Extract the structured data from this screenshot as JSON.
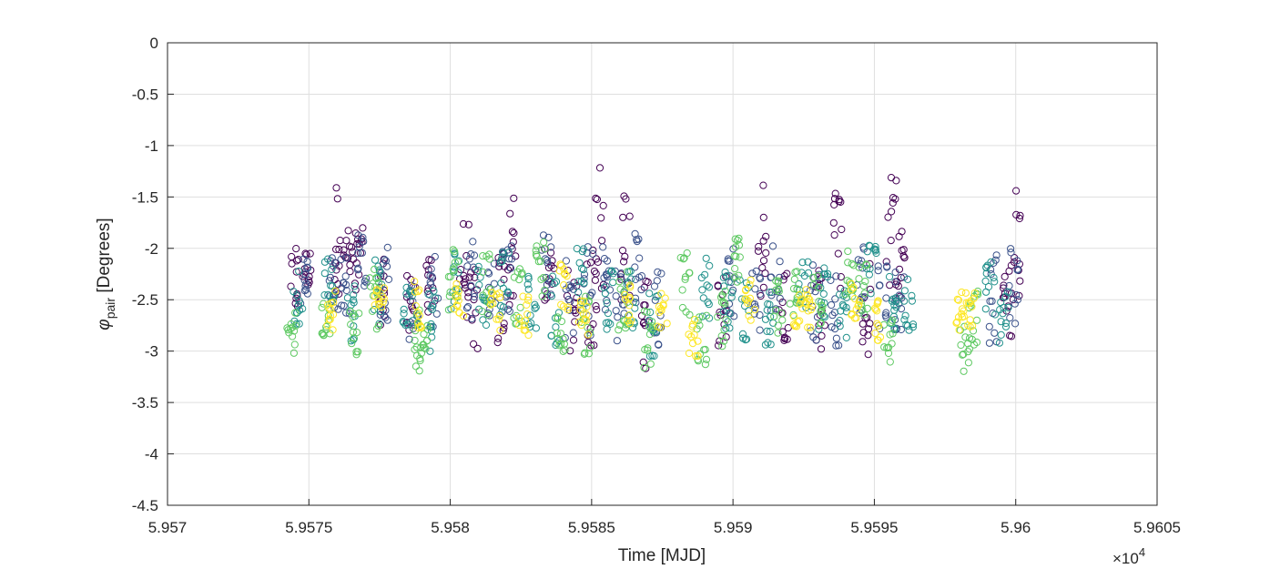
{
  "chart_data": {
    "type": "scatter",
    "title": "",
    "xlabel": "Time [MJD]",
    "ylabel_symbol": "φ",
    "ylabel_subscript": "pair",
    "ylabel_rest": " [Degrees]",
    "x_multiplier": "×10",
    "x_multiplier_exponent": "4",
    "xlim": [
      59570,
      59605
    ],
    "ylim": [
      -4.5,
      0
    ],
    "xticks": [
      59570,
      59575,
      59580,
      59585,
      59590,
      59595,
      59600,
      59605
    ],
    "xtick_labels": [
      "5.957",
      "5.9575",
      "5.958",
      "5.9585",
      "5.959",
      "5.9595",
      "5.96",
      "5.9605"
    ],
    "yticks": [
      0,
      -0.5,
      -1,
      -1.5,
      -2,
      -2.5,
      -3,
      -3.5,
      -4,
      -4.5
    ],
    "ytick_labels": [
      "0",
      "-0.5",
      "-1",
      "-1.5",
      "-2",
      "-2.5",
      "-3",
      "-3.5",
      "-4",
      "-4.5"
    ],
    "grid": true,
    "marker": "open-circle",
    "colormap": [
      "#440154",
      "#3b528b",
      "#21918c",
      "#5ec962",
      "#fde725"
    ],
    "series": [
      {
        "x": [
          59574.5,
          59574.9,
          59576.0,
          59576.4,
          59576.8,
          59577.6,
          59578.6,
          59579.3,
          59580.5,
          59580.8,
          59581.8,
          59582.2,
          59583.5,
          59584.3,
          59585.0,
          59585.3,
          59586.2,
          59586.9,
          59589.6,
          59591.0,
          59591.8,
          59593.1,
          59593.7,
          59594.7,
          59595.6,
          59595.9,
          59599.7,
          59600.0
        ],
        "y": [
          -2.35,
          -2.2,
          -1.9,
          -2.1,
          -2.2,
          -2.4,
          -2.5,
          -2.4,
          -2.2,
          -2.6,
          -2.5,
          -2.0,
          -2.3,
          -2.6,
          -2.5,
          -1.8,
          -2.0,
          -2.7,
          -2.6,
          -1.9,
          -2.5,
          -2.6,
          -1.95,
          -2.6,
          -1.9,
          -2.2,
          -2.5,
          -2.0
        ],
        "spread": [
          0.35,
          0.2,
          0.55,
          0.3,
          0.4,
          0.35,
          0.3,
          0.3,
          0.5,
          0.4,
          0.5,
          0.6,
          0.3,
          0.4,
          0.5,
          0.7,
          0.55,
          0.5,
          0.35,
          0.6,
          0.4,
          0.4,
          0.6,
          0.45,
          0.6,
          0.4,
          0.4,
          0.6
        ]
      },
      {
        "x": [
          59574.8,
          59575.9,
          59576.3,
          59576.9,
          59577.7,
          59578.7,
          59579.4,
          59580.7,
          59581.5,
          59582.0,
          59583.4,
          59584.2,
          59584.9,
          59585.5,
          59586.0,
          59586.7,
          59587.3,
          59589.9,
          59590.8,
          59591.5,
          59592.9,
          59593.6,
          59594.5,
          59595.3,
          59595.9,
          59599.2,
          59599.9
        ],
        "y": [
          -2.3,
          -2.3,
          -2.4,
          -2.1,
          -2.3,
          -2.6,
          -2.4,
          -2.3,
          -2.4,
          -2.3,
          -2.2,
          -2.5,
          -2.4,
          -2.3,
          -2.5,
          -2.2,
          -2.6,
          -2.3,
          -2.5,
          -2.3,
          -2.5,
          -2.6,
          -2.3,
          -2.4,
          -2.5,
          -2.5,
          -2.4
        ],
        "spread": [
          0.25,
          0.3,
          0.35,
          0.3,
          0.4,
          0.3,
          0.4,
          0.4,
          0.3,
          0.35,
          0.35,
          0.4,
          0.5,
          0.35,
          0.4,
          0.4,
          0.4,
          0.4,
          0.35,
          0.35,
          0.4,
          0.35,
          0.35,
          0.4,
          0.3,
          0.45,
          0.4
        ]
      },
      {
        "x": [
          59574.6,
          59575.7,
          59576.5,
          59577.4,
          59578.5,
          59579.3,
          59580.2,
          59581.1,
          59581.9,
          59582.9,
          59583.7,
          59584.6,
          59585.6,
          59586.4,
          59587.2,
          59589.0,
          59589.8,
          59590.4,
          59591.3,
          59592.5,
          59593.2,
          59593.9,
          59594.9,
          59595.7,
          59596.2,
          59599.1,
          59599.6
        ],
        "y": [
          -2.5,
          -2.3,
          -2.6,
          -2.4,
          -2.6,
          -2.7,
          -2.3,
          -2.4,
          -2.3,
          -2.5,
          -2.6,
          -2.3,
          -2.5,
          -2.5,
          -2.7,
          -2.4,
          -2.5,
          -2.6,
          -2.7,
          -2.4,
          -2.5,
          -2.6,
          -2.2,
          -2.5,
          -2.6,
          -2.4,
          -2.7
        ],
        "spread": [
          0.3,
          0.25,
          0.3,
          0.35,
          0.3,
          0.35,
          0.3,
          0.35,
          0.35,
          0.3,
          0.35,
          0.3,
          0.3,
          0.3,
          0.35,
          0.35,
          0.3,
          0.3,
          0.35,
          0.3,
          0.35,
          0.3,
          0.3,
          0.3,
          0.3,
          0.3,
          0.3
        ]
      },
      {
        "x": [
          59574.4,
          59575.6,
          59576.6,
          59577.3,
          59578.9,
          59579.1,
          59580.1,
          59581.3,
          59582.4,
          59583.2,
          59583.9,
          59584.8,
          59586.1,
          59587.0,
          59588.3,
          59588.9,
          59589.6,
          59590.2,
          59591.6,
          59592.1,
          59593.0,
          59594.1,
          59594.6,
          59595.5,
          59598.2,
          59598.5
        ],
        "y": [
          -2.85,
          -2.6,
          -2.8,
          -2.5,
          -2.9,
          -3.05,
          -2.3,
          -2.35,
          -2.5,
          -2.2,
          -2.9,
          -2.7,
          -2.5,
          -2.9,
          -2.3,
          -2.9,
          -2.7,
          -2.2,
          -2.6,
          -2.4,
          -2.5,
          -2.2,
          -2.4,
          -2.9,
          -3.0,
          -2.7
        ],
        "spread": [
          0.3,
          0.3,
          0.25,
          0.3,
          0.3,
          0.3,
          0.3,
          0.3,
          0.3,
          0.3,
          0.25,
          0.35,
          0.3,
          0.3,
          0.35,
          0.25,
          0.3,
          0.3,
          0.3,
          0.25,
          0.3,
          0.3,
          0.3,
          0.25,
          0.25,
          0.3
        ]
      },
      {
        "x": [
          59575.8,
          59577.5,
          59578.8,
          59580.3,
          59581.6,
          59582.6,
          59584.0,
          59584.7,
          59586.3,
          59587.5,
          59588.6,
          59590.6,
          59592.3,
          59592.7,
          59594.3,
          59595.1,
          59598.0,
          59598.4
        ],
        "y": [
          -2.6,
          -2.55,
          -2.55,
          -2.5,
          -2.6,
          -2.65,
          -2.4,
          -2.7,
          -2.55,
          -2.6,
          -2.8,
          -2.5,
          -2.7,
          -2.6,
          -2.5,
          -2.7,
          -2.6,
          -2.6
        ],
        "spread": [
          0.2,
          0.2,
          0.25,
          0.2,
          0.2,
          0.2,
          0.25,
          0.2,
          0.2,
          0.2,
          0.25,
          0.2,
          0.25,
          0.2,
          0.2,
          0.2,
          0.2,
          0.2
        ]
      }
    ]
  }
}
